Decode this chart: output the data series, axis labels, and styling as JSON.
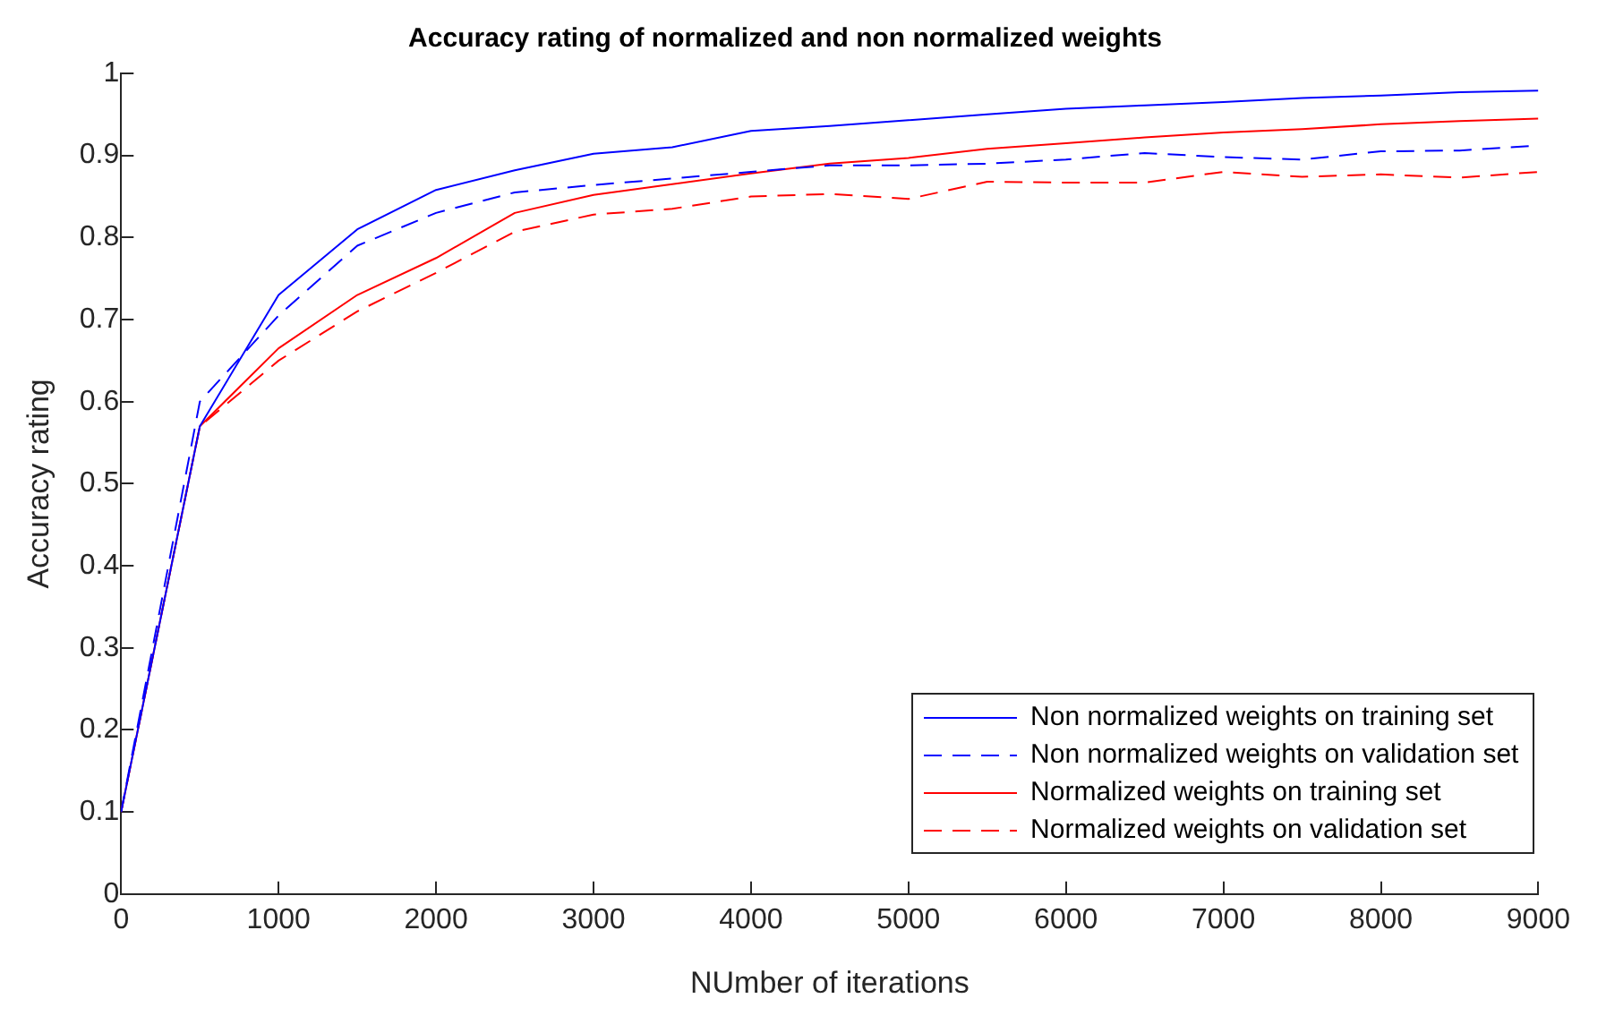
{
  "chart_data": {
    "type": "line",
    "title": "Accuracy rating of normalized and non normalized weights",
    "xlabel": "NUmber of iterations",
    "ylabel": "Accuracy rating",
    "x": [
      0,
      500,
      1000,
      1500,
      2000,
      2500,
      3000,
      3500,
      4000,
      4500,
      5000,
      5500,
      6000,
      6500,
      7000,
      7500,
      8000,
      8500,
      9000
    ],
    "series": [
      {
        "name": "Non normalized weights on training set",
        "color": "#0000ff",
        "line_style": "solid",
        "values": [
          0.1,
          0.57,
          0.73,
          0.81,
          0.858,
          0.882,
          0.902,
          0.91,
          0.93,
          0.936,
          0.943,
          0.95,
          0.957,
          0.961,
          0.965,
          0.97,
          0.973,
          0.977,
          0.979
        ]
      },
      {
        "name": "Non normalized weights on validation set",
        "color": "#0000ff",
        "line_style": "dashed",
        "values": [
          0.1,
          0.6,
          0.705,
          0.79,
          0.83,
          0.855,
          0.864,
          0.872,
          0.88,
          0.888,
          0.888,
          0.89,
          0.895,
          0.903,
          0.898,
          0.895,
          0.905,
          0.906,
          0.912
        ]
      },
      {
        "name": "Normalized weights on training set",
        "color": "#ff0000",
        "line_style": "solid",
        "values": [
          0.1,
          0.57,
          0.665,
          0.73,
          0.775,
          0.83,
          0.852,
          0.865,
          0.878,
          0.89,
          0.897,
          0.908,
          0.915,
          0.922,
          0.928,
          0.932,
          0.938,
          0.942,
          0.945
        ]
      },
      {
        "name": "Normalized weights on validation set",
        "color": "#ff0000",
        "line_style": "dashed",
        "values": [
          0.1,
          0.57,
          0.65,
          0.71,
          0.757,
          0.807,
          0.828,
          0.835,
          0.85,
          0.853,
          0.847,
          0.868,
          0.867,
          0.867,
          0.88,
          0.874,
          0.877,
          0.873,
          0.88
        ]
      }
    ],
    "xlim": [
      0,
      9000
    ],
    "xticks": [
      0,
      1000,
      2000,
      3000,
      4000,
      5000,
      6000,
      7000,
      8000,
      9000
    ],
    "ylim": [
      0,
      1
    ],
    "yticks": [
      0,
      0.1,
      0.2,
      0.3,
      0.4,
      0.5,
      0.6,
      0.7,
      0.8,
      0.9,
      1
    ],
    "grid": false,
    "legend": "bottom right",
    "marker": "none"
  }
}
